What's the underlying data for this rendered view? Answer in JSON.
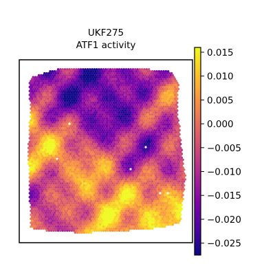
{
  "chart_data": {
    "type": "heatmap",
    "title": "UKF275",
    "subtitle": "ATF1 activity",
    "xlabel": "",
    "ylabel": "",
    "colormap": "plasma",
    "colorbar": {
      "min": -0.0275,
      "max": 0.016,
      "ticks": [
        0.015,
        0.01,
        0.005,
        0.0,
        -0.005,
        -0.01,
        -0.015,
        -0.02,
        -0.025
      ],
      "tick_labels": [
        "0.015",
        "0.010",
        "0.005",
        "0.000",
        "−0.005",
        "−0.010",
        "−0.015",
        "−0.020",
        "−0.025"
      ]
    },
    "spatial_field": {
      "description_values": "spot activity values (data units), spatial layout approximated",
      "low_regions": [
        {
          "loc": "upper-left",
          "value": -0.024
        },
        {
          "loc": "upper-center",
          "value": -0.026
        },
        {
          "loc": "upper-right",
          "value": -0.022
        },
        {
          "loc": "center",
          "value": -0.02
        },
        {
          "loc": "center-right",
          "value": -0.018
        },
        {
          "loc": "lower-left",
          "value": -0.012
        }
      ],
      "high_regions": [
        {
          "loc": "left-middle",
          "value": 0.012
        },
        {
          "loc": "upper-right-edge",
          "value": 0.01
        },
        {
          "loc": "center-middle",
          "value": 0.009
        },
        {
          "loc": "lower-center",
          "value": 0.011
        },
        {
          "loc": "bottom-right",
          "value": 0.013
        }
      ]
    }
  },
  "colors": {
    "frame": "#000000",
    "background": "#ffffff"
  }
}
